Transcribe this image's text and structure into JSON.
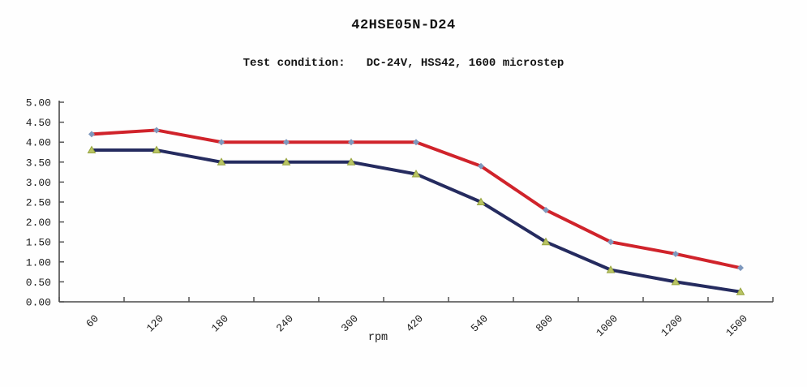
{
  "header": {
    "title": "42HSE05N-D24",
    "test_condition_label": "Test condition:",
    "test_condition_value": "DC-24V, HSS42, 1600 microstep"
  },
  "chart_data": {
    "type": "line",
    "title": "42HSE05N-D24",
    "subtitle": "Test condition:  DC-24V, HSS42, 1600 microstep",
    "xlabel": "rpm",
    "ylabel": "",
    "categories": [
      "60",
      "120",
      "180",
      "240",
      "300",
      "420",
      "540",
      "800",
      "1000",
      "1200",
      "1500"
    ],
    "series": [
      {
        "name": "red-upper-curve",
        "color": "#d0232b",
        "marker": "diamond",
        "marker_color": "#7e98bd",
        "values": [
          4.2,
          4.3,
          4.0,
          4.0,
          4.0,
          4.0,
          3.4,
          2.3,
          1.5,
          1.2,
          0.85
        ]
      },
      {
        "name": "navy-lower-curve",
        "color": "#252b5f",
        "marker": "triangle",
        "marker_color": "#b9c464",
        "marker_edge_color": "#96a43e",
        "values": [
          3.8,
          3.8,
          3.5,
          3.5,
          3.5,
          3.2,
          2.5,
          1.5,
          0.8,
          0.5,
          0.25
        ]
      }
    ],
    "ylim": [
      0,
      5
    ],
    "ytick_step": 0.5,
    "ytick_labels": [
      "0.00",
      "0.50",
      "1.00",
      "1.50",
      "2.00",
      "2.50",
      "3.00",
      "3.50",
      "4.00",
      "4.50",
      "5.00"
    ],
    "grid": false,
    "legend": "none",
    "axis_color": "#4a4a4a"
  }
}
